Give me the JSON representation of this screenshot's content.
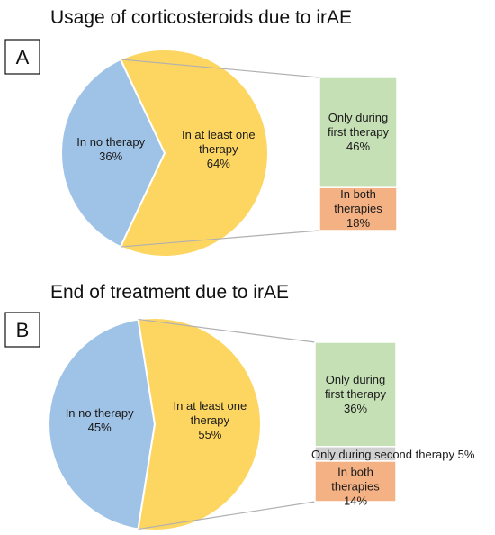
{
  "chart_data": [
    {
      "type": "pie",
      "panel": "A",
      "title": "Usage of corticosteroids due to irAE",
      "slices": [
        {
          "label_lines": [
            "In no therapy"
          ],
          "value": 36,
          "value_label": "36%",
          "color": "#9fc3e6"
        },
        {
          "label_lines": [
            "In at least one",
            "therapy"
          ],
          "value": 64,
          "value_label": "64%",
          "color": "#fdd662"
        }
      ],
      "breakdown": {
        "of_slice": 1,
        "segments": [
          {
            "label_lines": [
              "Only during",
              "first therapy"
            ],
            "value": 46,
            "value_label": "46%",
            "color": "#c5e0b4"
          },
          {
            "label_lines": [
              "In both",
              "therapies"
            ],
            "value": 18,
            "value_label": "18%",
            "color": "#f4b183"
          }
        ]
      }
    },
    {
      "type": "pie",
      "panel": "B",
      "title": "End of treatment due to irAE",
      "slices": [
        {
          "label_lines": [
            "In no therapy"
          ],
          "value": 45,
          "value_label": "45%",
          "color": "#9fc3e6"
        },
        {
          "label_lines": [
            "In at least one",
            "therapy"
          ],
          "value": 55,
          "value_label": "55%",
          "color": "#fdd662"
        }
      ],
      "breakdown": {
        "of_slice": 1,
        "segments": [
          {
            "label_lines": [
              "Only during",
              "first therapy"
            ],
            "value": 36,
            "value_label": "36%",
            "color": "#c5e0b4"
          },
          {
            "label_lines": [
              "Only during second therapy"
            ],
            "value": 5,
            "value_label": "5%",
            "color": "#d0d0d0"
          },
          {
            "label_lines": [
              "In both",
              "therapies"
            ],
            "value": 14,
            "value_label": "14%",
            "color": "#f4b183"
          }
        ]
      }
    }
  ]
}
